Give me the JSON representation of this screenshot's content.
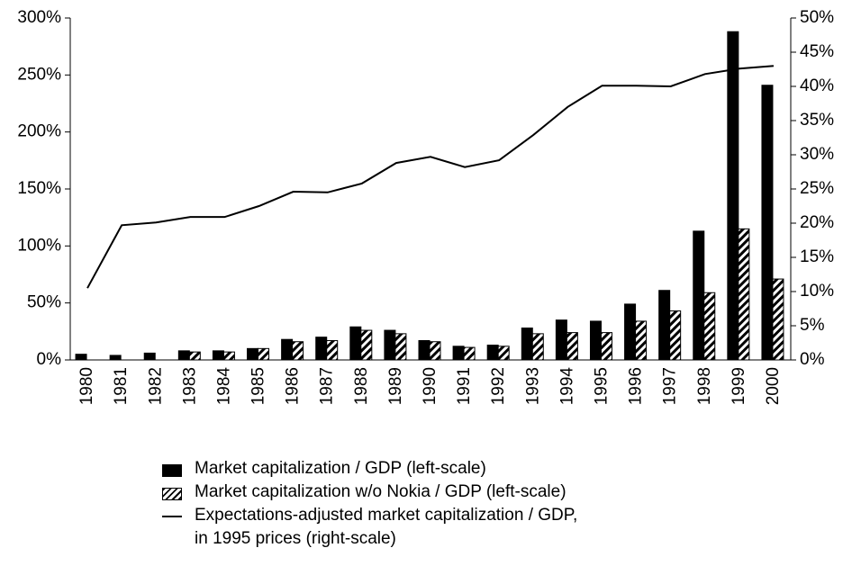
{
  "chart_data": {
    "type": "bar",
    "categories": [
      "1980",
      "1981",
      "1982",
      "1983",
      "1984",
      "1985",
      "1986",
      "1987",
      "1988",
      "1989",
      "1990",
      "1991",
      "1992",
      "1993",
      "1994",
      "1995",
      "1996",
      "1997",
      "1998",
      "1999",
      "2000"
    ],
    "series": [
      {
        "name": "Market capitalization / GDP (left-scale)",
        "color": "#000000",
        "fill": "solid",
        "values": [
          5,
          4,
          6,
          8,
          8,
          10,
          18,
          20,
          29,
          26,
          17,
          12,
          13,
          28,
          35,
          34,
          49,
          61,
          113,
          288,
          241
        ]
      },
      {
        "name": "Market capitalization w/o Nokia  / GDP (left-scale)",
        "color": "#000000",
        "fill": "hatched",
        "values": [
          null,
          null,
          null,
          7,
          7,
          10,
          16,
          17,
          26,
          23,
          16,
          11,
          12,
          23,
          24,
          24,
          34,
          43,
          59,
          115,
          71
        ]
      },
      {
        "name": "Expectations-adjusted market capitalization / GDP,\nin 1995 prices (right-scale)",
        "color": "#000000",
        "type": "line",
        "axis": "y2",
        "values": [
          10.5,
          19.7,
          20.1,
          20.9,
          20.9,
          22.5,
          24.6,
          24.5,
          25.8,
          28.8,
          29.7,
          28.2,
          29.2,
          32.9,
          37.0,
          40.1,
          40.1,
          40.0,
          41.8,
          42.6,
          43.0
        ]
      }
    ],
    "ylim": [
      0,
      300
    ],
    "yticks": [
      {
        "value": 0,
        "label": "0%"
      },
      {
        "value": 50,
        "label": "50%"
      },
      {
        "value": 100,
        "label": "100%"
      },
      {
        "value": 150,
        "label": "150%"
      },
      {
        "value": 200,
        "label": "200%"
      },
      {
        "value": 250,
        "label": "250%"
      },
      {
        "value": 300,
        "label": "300%"
      }
    ],
    "y2lim": [
      0,
      50
    ],
    "y2ticks": [
      {
        "value": 0,
        "label": "0%"
      },
      {
        "value": 5,
        "label": "5%"
      },
      {
        "value": 10,
        "label": "10%"
      },
      {
        "value": 15,
        "label": "15%"
      },
      {
        "value": 20,
        "label": "20%"
      },
      {
        "value": 25,
        "label": "25%"
      },
      {
        "value": 30,
        "label": "30%"
      },
      {
        "value": 35,
        "label": "35%"
      },
      {
        "value": 40,
        "label": "40%"
      },
      {
        "value": 45,
        "label": "45%"
      },
      {
        "value": 50,
        "label": "50%"
      }
    ],
    "grid": false,
    "legend": "bottom"
  }
}
